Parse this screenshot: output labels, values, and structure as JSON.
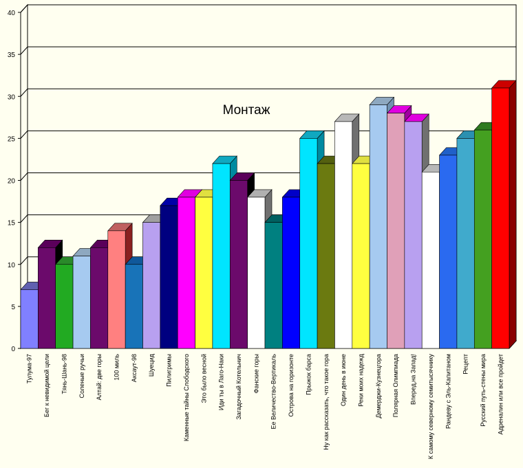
{
  "chart_data": {
    "type": "bar",
    "title": "Монтаж",
    "xlabel": "",
    "ylabel": "",
    "ylim": [
      0,
      40
    ],
    "yticks": [
      0,
      5,
      10,
      15,
      20,
      25,
      30,
      35,
      40
    ],
    "grid": true,
    "legend": "none",
    "style": "3d",
    "categories": [
      "Тулума-97",
      "Бег к невидимой цели",
      "Тянь-Шань-98",
      "Соленые ручьи",
      "Алтай: две горы",
      "100 миль",
      "Аксаут-98",
      "Шуецид",
      "Пилигримы",
      "Каменные тайны Слободского",
      "Это было весной",
      "Иди ты в Лаго-Наки",
      "Загадочный Котельнич",
      "Фанские горы",
      "Ее Величество-Вертикаль",
      "Острова на горизонте",
      "Прыжок барса",
      "Ну как рассказать, что такое гора",
      "Один день в июне",
      "Реки моих надежд",
      "Демерджи-Кузнецгора",
      "Полярная Олимпиада",
      "Вперед,на Запад!",
      "К самому северному семитысячнику",
      "Рандеву с Эль-Капитаном",
      "Рецепт",
      "Русский путь-стены мира",
      "Адреналин или все пройдет"
    ],
    "values": [
      7,
      12,
      10,
      11,
      12,
      14,
      10,
      15,
      17,
      18,
      18,
      22,
      20,
      18,
      15,
      18,
      25,
      22,
      27,
      22,
      29,
      28,
      27,
      21,
      23,
      25,
      26,
      31
    ],
    "colors": [
      "#8080FF",
      "#6B0A6B",
      "#22AA22",
      "#A6CAF0",
      "#6B0A6B",
      "#FF8080",
      "#1873B8",
      "#B8A0F0",
      "#000080",
      "#FF00FF",
      "#FFFF40",
      "#00E5FF",
      "#6B0A6B",
      "#FFFFFF",
      "#008080",
      "#0000FF",
      "#00E5FF",
      "#6B7A10",
      "#FFFFFF",
      "#FFFF40",
      "#A6CAF0",
      "#E0A0B8",
      "#B8A0F0",
      "#FFFFFF",
      "#2A6AF0",
      "#40AACC",
      "#44A020",
      "#FF0000"
    ],
    "top_colors": [
      "#6060B0",
      "#5A005A",
      "#2A8A2A",
      "#8EA8C0",
      "#5A005A",
      "#C06060",
      "#10589A",
      "#A0A0A0",
      "#0000A8",
      "#E000E0",
      "#E0E040",
      "#10A8C0",
      "#5A005A",
      "#B0B0B0",
      "#006060",
      "#0000C8",
      "#10A8C0",
      "#546010",
      "#B8B8B8",
      "#E0E040",
      "#8EA8C0",
      "#E000E0",
      "#E000E0",
      "#B8B8B8",
      "#2060C8",
      "#2A90B0",
      "#2E7A20",
      "#CC0000"
    ],
    "side_colors": [
      "#5050A0",
      "#000000",
      "#207A20",
      "#7090B0",
      "#480048",
      "#8A2020",
      "#0E4E8A",
      "#7070B0",
      "#000050",
      "#A000A0",
      "#B0B020",
      "#008AA0",
      "#000000",
      "#707070",
      "#004848",
      "#000090",
      "#008AA0",
      "#3A4408",
      "#707070",
      "#B0B020",
      "#7090B0",
      "#A000A0",
      "#707070",
      "#707070",
      "#1A4AA0",
      "#206A88",
      "#204A18",
      "#8A0000"
    ]
  }
}
